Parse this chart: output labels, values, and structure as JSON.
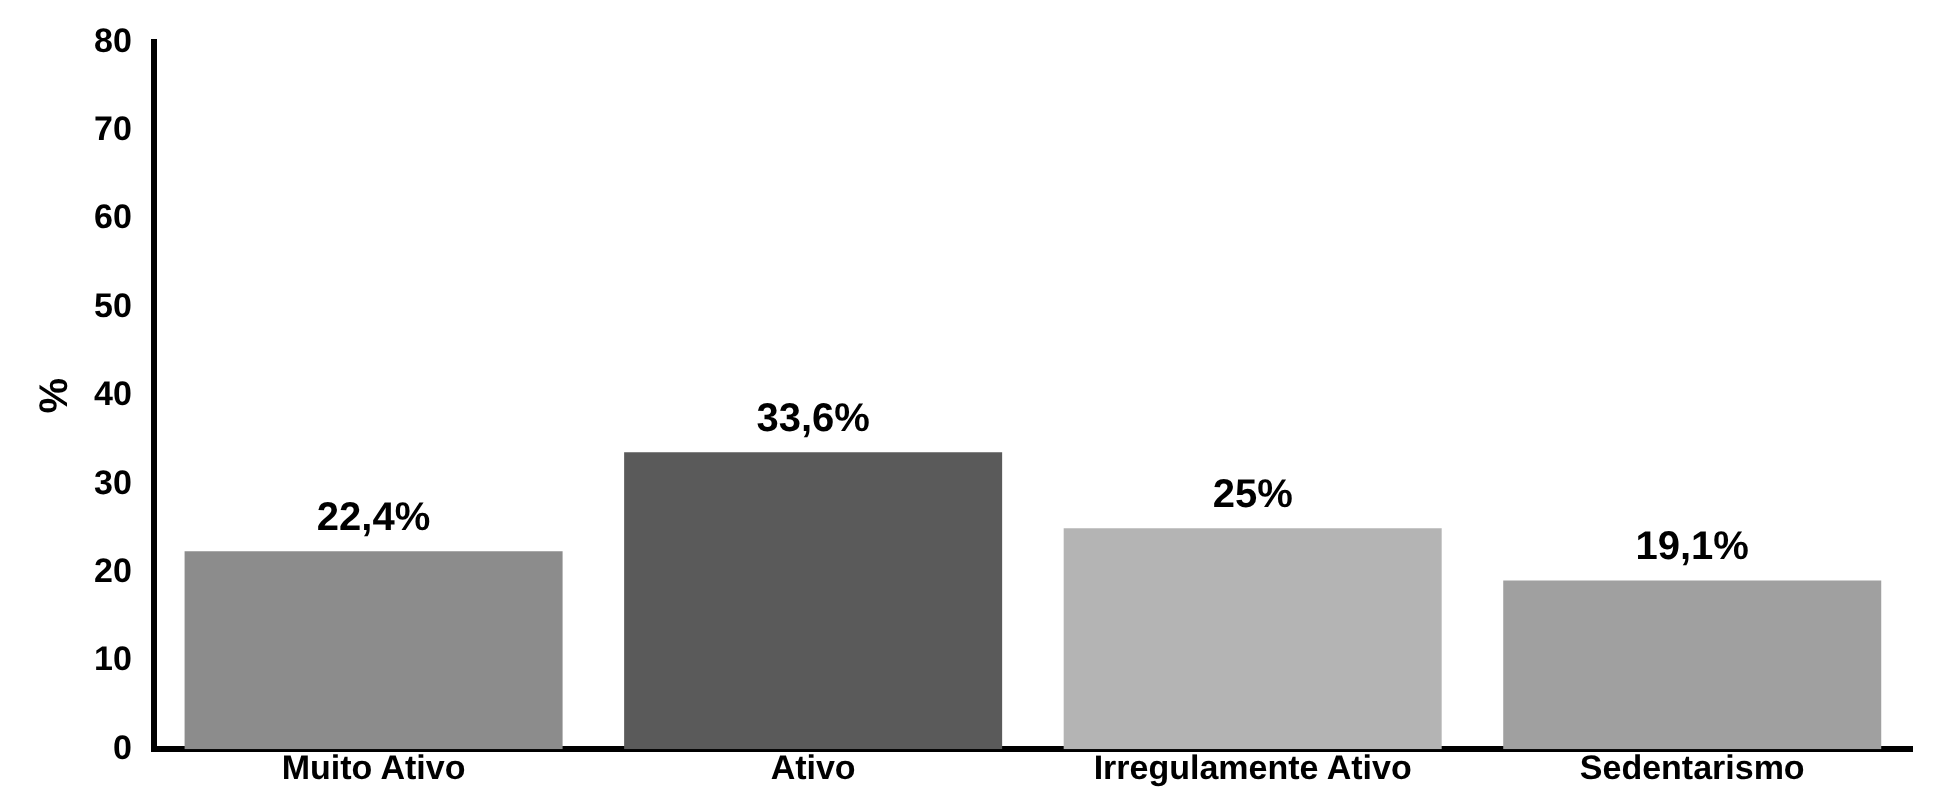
{
  "chart_data": {
    "type": "bar",
    "ylabel": "%",
    "categories": [
      "Muito Ativo",
      "Ativo",
      "Irregulamente Ativo",
      "Sedentarismo"
    ],
    "values": [
      22.4,
      33.6,
      25,
      19.1
    ],
    "value_labels": [
      "22,4%",
      "33,6%",
      "25%",
      "19,1%"
    ],
    "colors": [
      "#8c8c8c",
      "#5a5a5a",
      "#b4b4b4",
      "#a0a0a0"
    ],
    "ylim": [
      0,
      80
    ],
    "yticks": [
      0,
      10,
      20,
      30,
      40,
      50,
      60,
      70,
      80
    ],
    "grid": false,
    "legend": false
  }
}
